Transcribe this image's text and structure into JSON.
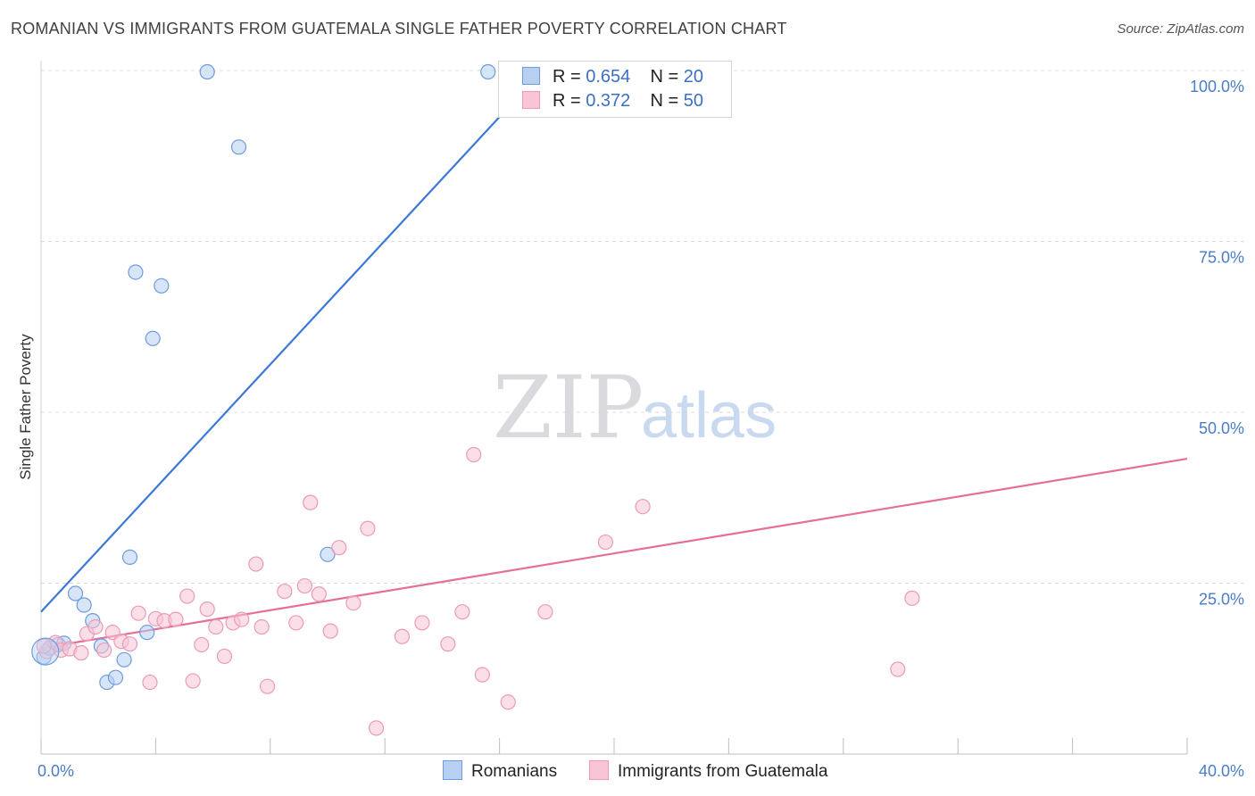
{
  "title": "ROMANIAN VS IMMIGRANTS FROM GUATEMALA SINGLE FATHER POVERTY CORRELATION CHART",
  "source": "Source: ZipAtlas.com",
  "watermark": {
    "zip": "ZIP",
    "atlas": "atlas"
  },
  "legend": {
    "rows": [
      {
        "r_label": "R = ",
        "r_value": "0.654",
        "n_label": "N = ",
        "n_value": "20"
      },
      {
        "r_label": "R = ",
        "r_value": "0.372",
        "n_label": "N = ",
        "n_value": "50"
      }
    ]
  },
  "colors": {
    "blue": "#3c78d8",
    "blue_fill": "#b7d0f2",
    "blue_stroke": "#6f9bdc",
    "pink": "#e46f99",
    "pink_fill": "#f7c5d5",
    "pink_stroke": "#ec9ab6",
    "grid": "#dddddd",
    "axis_text": "#4a7cc7"
  },
  "chart_data": {
    "type": "scatter",
    "title": "ROMANIAN VS IMMIGRANTS FROM GUATEMALA SINGLE FATHER POVERTY CORRELATION CHART",
    "xlabel": "",
    "ylabel": "Single Father Poverty",
    "xlim": [
      0,
      40
    ],
    "ylim": [
      0,
      100
    ],
    "x_tick_labels": [
      "0.0%",
      "40.0%"
    ],
    "y_ticks": [
      25,
      50,
      75,
      100
    ],
    "y_tick_labels": [
      "25.0%",
      "50.0%",
      "75.0%",
      "100.0%"
    ],
    "grid": true,
    "legend_position": "bottom",
    "series": [
      {
        "name": "Romanians",
        "color": "#3c78d8",
        "r": 0.654,
        "n": 20,
        "points": [
          [
            0.1,
            14.2
          ],
          [
            0.3,
            15.5
          ],
          [
            0.6,
            16.0
          ],
          [
            0.8,
            16.2
          ],
          [
            1.2,
            23.5
          ],
          [
            1.5,
            21.8
          ],
          [
            1.8,
            19.5
          ],
          [
            2.1,
            15.8
          ],
          [
            2.3,
            10.5
          ],
          [
            2.6,
            11.2
          ],
          [
            2.9,
            13.8
          ],
          [
            3.1,
            28.8
          ],
          [
            3.3,
            70.5
          ],
          [
            3.7,
            17.8
          ],
          [
            3.9,
            60.8
          ],
          [
            4.2,
            68.5
          ],
          [
            5.8,
            99.8
          ],
          [
            6.9,
            88.8
          ],
          [
            10.0,
            29.2
          ],
          [
            15.6,
            99.8
          ]
        ],
        "trend": {
          "x": [
            0,
            17.5
          ],
          "y": [
            20.8,
            100
          ]
        }
      },
      {
        "name": "Immigrants from Guatemala",
        "color": "#e46f99",
        "r": 0.372,
        "n": 50,
        "points": [
          [
            0.2,
            15.0
          ],
          [
            0.5,
            16.3
          ],
          [
            0.7,
            15.2
          ],
          [
            1.0,
            15.4
          ],
          [
            1.4,
            14.8
          ],
          [
            1.6,
            17.6
          ],
          [
            1.9,
            18.6
          ],
          [
            2.2,
            15.2
          ],
          [
            2.5,
            17.8
          ],
          [
            2.8,
            16.5
          ],
          [
            3.1,
            16.1
          ],
          [
            3.4,
            20.6
          ],
          [
            3.8,
            10.5
          ],
          [
            4.0,
            19.8
          ],
          [
            4.3,
            19.5
          ],
          [
            4.7,
            19.7
          ],
          [
            5.1,
            23.1
          ],
          [
            5.3,
            10.7
          ],
          [
            5.6,
            16.0
          ],
          [
            5.8,
            21.2
          ],
          [
            6.1,
            18.6
          ],
          [
            6.4,
            14.3
          ],
          [
            6.7,
            19.2
          ],
          [
            7.0,
            19.7
          ],
          [
            7.5,
            27.8
          ],
          [
            7.7,
            18.6
          ],
          [
            7.9,
            9.9
          ],
          [
            8.5,
            23.8
          ],
          [
            8.9,
            19.2
          ],
          [
            9.2,
            24.6
          ],
          [
            9.4,
            36.8
          ],
          [
            9.7,
            23.4
          ],
          [
            10.1,
            18.0
          ],
          [
            10.4,
            30.2
          ],
          [
            10.9,
            22.1
          ],
          [
            11.4,
            33.0
          ],
          [
            11.7,
            3.8
          ],
          [
            12.6,
            17.2
          ],
          [
            13.3,
            19.2
          ],
          [
            14.2,
            16.1
          ],
          [
            14.7,
            20.8
          ],
          [
            15.1,
            43.8
          ],
          [
            15.4,
            11.6
          ],
          [
            16.3,
            7.6
          ],
          [
            17.6,
            20.8
          ],
          [
            19.7,
            31.0
          ],
          [
            21.0,
            36.2
          ],
          [
            29.9,
            12.4
          ],
          [
            30.4,
            22.8
          ],
          [
            0.1,
            15.8
          ]
        ],
        "trend": {
          "x": [
            0,
            40
          ],
          "y": [
            15.5,
            43.2
          ]
        }
      }
    ]
  },
  "bottom_legend": [
    "Romanians",
    "Immigrants from Guatemala"
  ]
}
